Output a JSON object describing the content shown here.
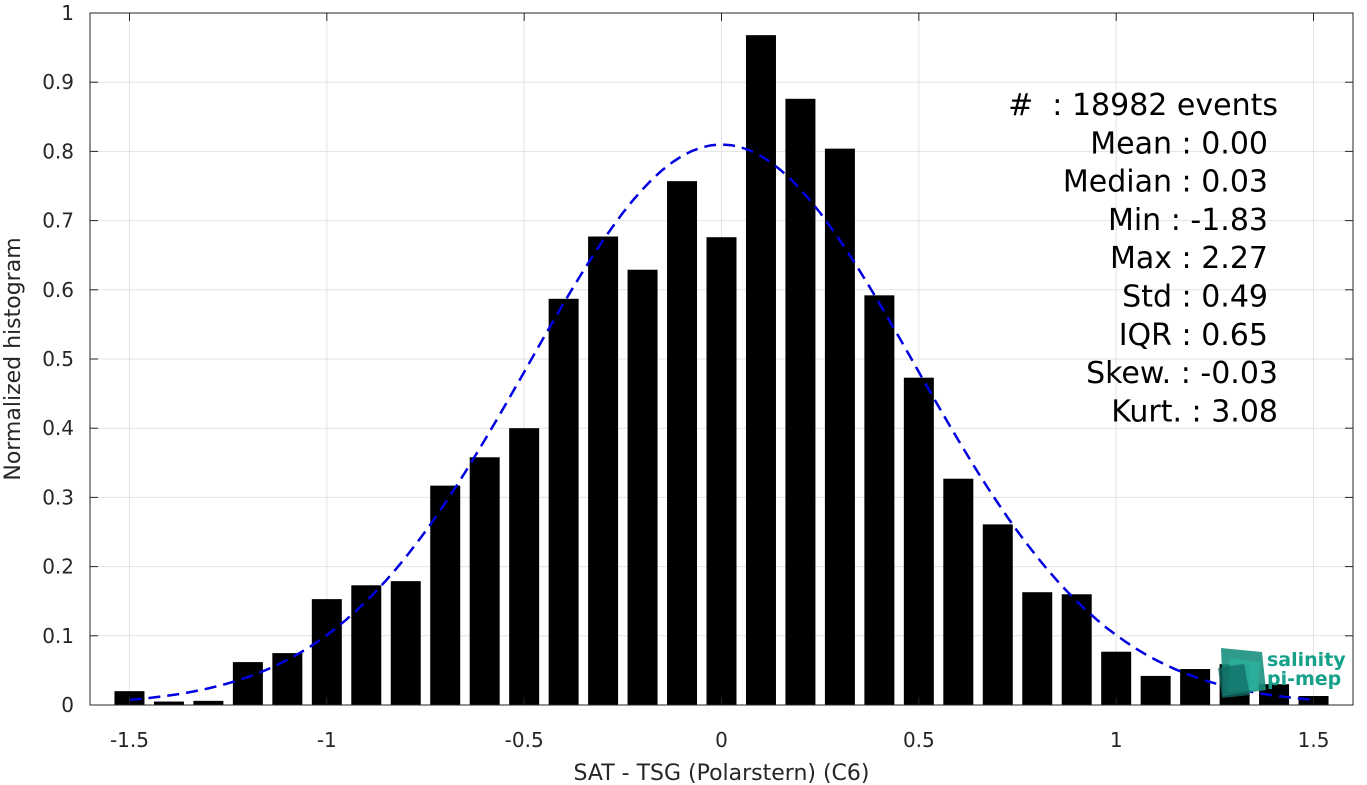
{
  "chart_data": {
    "type": "bar",
    "xlabel": "SAT - TSG (Polarstern) (C6)",
    "ylabel": "Normalized histogram",
    "xlim": [
      -1.6,
      1.6
    ],
    "ylim": [
      0,
      1
    ],
    "x_ticks": [
      "-1.5",
      "-1",
      "-0.5",
      "0",
      "0.5",
      "1",
      "1.5"
    ],
    "y_ticks": [
      "0",
      "0.1",
      "0.2",
      "0.3",
      "0.4",
      "0.5",
      "0.6",
      "0.7",
      "0.8",
      "0.9",
      "1"
    ],
    "grid": true,
    "bin_width": 0.1,
    "bins": [
      {
        "x": -1.5,
        "y": 0.02
      },
      {
        "x": -1.4,
        "y": 0.005
      },
      {
        "x": -1.3,
        "y": 0.006
      },
      {
        "x": -1.2,
        "y": 0.062
      },
      {
        "x": -1.1,
        "y": 0.075
      },
      {
        "x": -1.0,
        "y": 0.153
      },
      {
        "x": -0.9,
        "y": 0.173
      },
      {
        "x": -0.8,
        "y": 0.179
      },
      {
        "x": -0.7,
        "y": 0.317
      },
      {
        "x": -0.6,
        "y": 0.358
      },
      {
        "x": -0.5,
        "y": 0.4
      },
      {
        "x": -0.4,
        "y": 0.587
      },
      {
        "x": -0.3,
        "y": 0.677
      },
      {
        "x": -0.2,
        "y": 0.629
      },
      {
        "x": -0.1,
        "y": 0.757
      },
      {
        "x": 0.0,
        "y": 0.676
      },
      {
        "x": 0.1,
        "y": 0.968
      },
      {
        "x": 0.2,
        "y": 0.876
      },
      {
        "x": 0.3,
        "y": 0.804
      },
      {
        "x": 0.4,
        "y": 0.592
      },
      {
        "x": 0.5,
        "y": 0.473
      },
      {
        "x": 0.6,
        "y": 0.327
      },
      {
        "x": 0.7,
        "y": 0.261
      },
      {
        "x": 0.8,
        "y": 0.163
      },
      {
        "x": 0.9,
        "y": 0.16
      },
      {
        "x": 1.0,
        "y": 0.077
      },
      {
        "x": 1.1,
        "y": 0.042
      },
      {
        "x": 1.2,
        "y": 0.052
      },
      {
        "x": 1.3,
        "y": 0.059
      },
      {
        "x": 1.4,
        "y": 0.03
      },
      {
        "x": 1.5,
        "y": 0.013
      }
    ],
    "fit": {
      "type": "normal",
      "style": "dashed",
      "color": "#0000e0",
      "mean": 0.0,
      "std": 0.49,
      "peak": 0.81,
      "x_range": [
        -1.5,
        1.5
      ]
    },
    "stats": [
      "#  : 18982 events",
      "Mean : 0.00",
      "Median : 0.03",
      "Min : -1.83",
      "Max : 2.27",
      "Std : 0.49",
      "IQR : 0.65",
      "Skew. : -0.03",
      "Kurt. : 3.08"
    ],
    "colors": {
      "bars": "#000000",
      "fit": "#0000e0",
      "grid": "#e3e3e3",
      "axis": "#262626"
    }
  },
  "logo": {
    "line1": "salinity",
    "line2": "pi-mep"
  }
}
